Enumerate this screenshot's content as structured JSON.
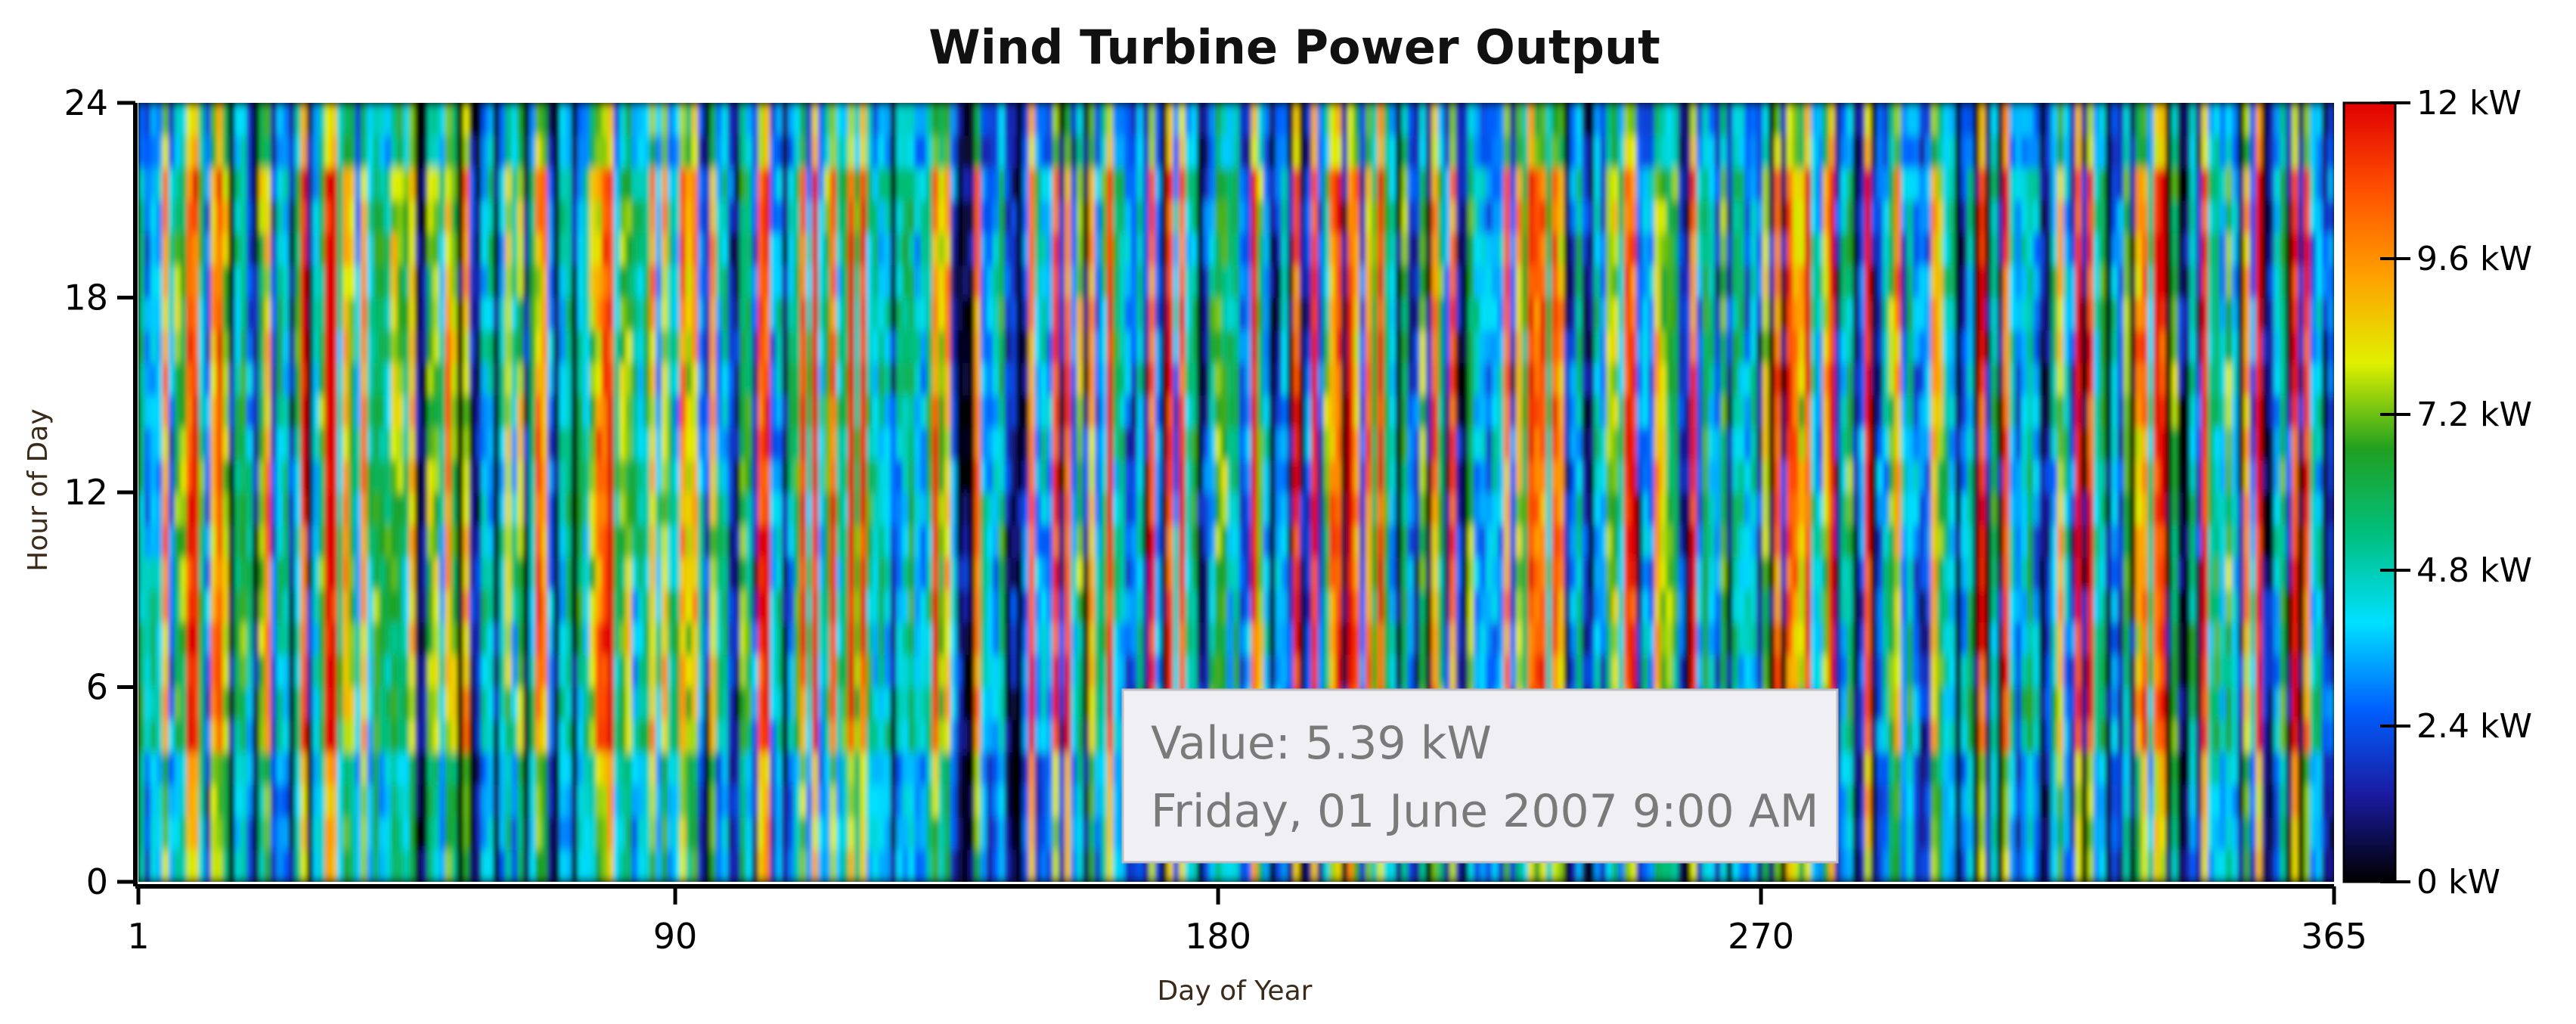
{
  "chart_data": {
    "type": "heatmap",
    "title": "Wind Turbine Power Output",
    "xlabel": "Day of Year",
    "ylabel": "Hour of Day",
    "xlim": [
      1,
      365
    ],
    "ylim": [
      0,
      24
    ],
    "x_ticks": [
      "1",
      "90",
      "180",
      "270",
      "365"
    ],
    "y_ticks": [
      "0",
      "6",
      "12",
      "18",
      "24"
    ],
    "value_unit": "kW",
    "value_range": [
      0,
      12
    ],
    "colorbar": {
      "labels": [
        "0 kW",
        "2.4 kW",
        "4.8 kW",
        "7.2 kW",
        "9.6 kW",
        "12 kW"
      ],
      "colors": [
        "#000000",
        "#1a1aa0",
        "#0060ff",
        "#00e0ff",
        "#00c080",
        "#20a020",
        "#e0f000",
        "#ffa000",
        "#ff5000",
        "#e00000"
      ]
    },
    "grid": false,
    "legend": "right",
    "tooltip": {
      "value_text": "Value: 5.39 kW",
      "date_text": "Friday, 01 June 2007 9:00 AM"
    }
  }
}
